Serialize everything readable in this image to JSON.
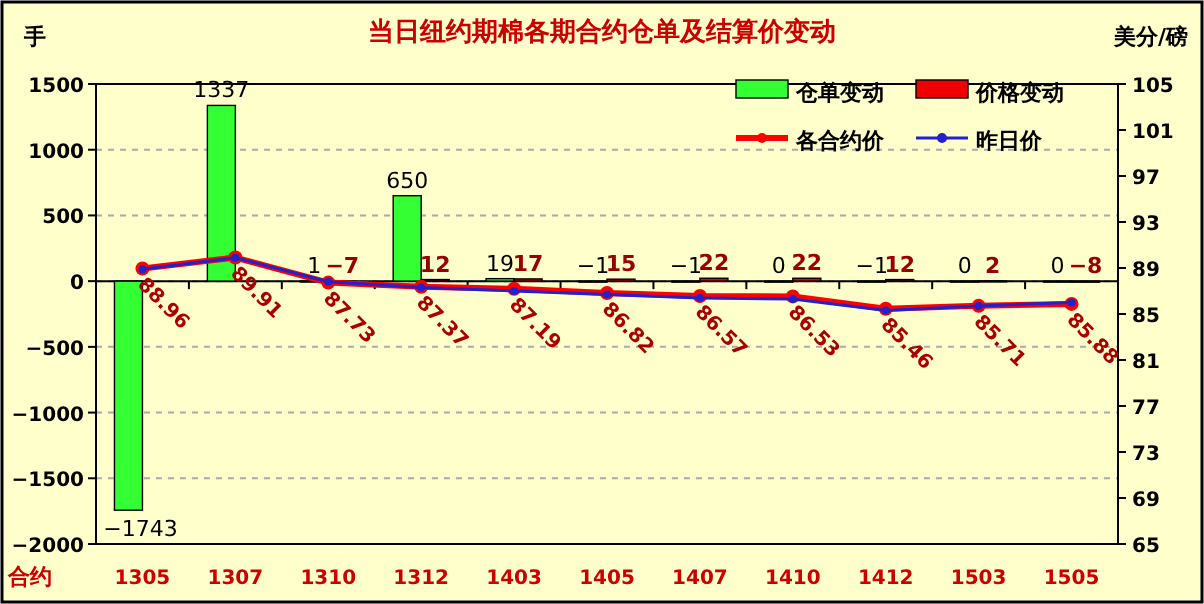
{
  "chart_data": {
    "type": "bar",
    "title": "当日纽约期棉各期合约仓单及结算价变动",
    "ylabel": "手",
    "y2label": "美分/磅",
    "xlabel": "合约",
    "categories": [
      "1305",
      "1307",
      "1310",
      "1312",
      "1403",
      "1405",
      "1407",
      "1410",
      "1412",
      "1503",
      "1505"
    ],
    "series": [
      {
        "name": "仓单变动",
        "color": "#33ff33",
        "values": [
          -1743,
          1337,
          1,
          650,
          19,
          -1,
          -1,
          0,
          -1,
          0,
          0
        ],
        "value_labels": [
          "−1743",
          "1337",
          "1",
          "650",
          "19",
          "−1",
          "−1",
          "0",
          "−1",
          "0",
          "0"
        ]
      },
      {
        "name": "价格变动",
        "color": "#ee0000",
        "values": [
          null,
          null,
          -7,
          12,
          17,
          15,
          22,
          22,
          12,
          2,
          -8
        ],
        "value_labels": [
          null,
          null,
          "−7",
          "12",
          "17",
          "15",
          "22",
          "22",
          "12",
          "2",
          "−8"
        ]
      },
      {
        "name": "各合约价",
        "type": "line",
        "axis": "y2",
        "color": "#ff0000",
        "marker": "circle",
        "values": [
          88.96,
          89.91,
          87.73,
          87.37,
          87.19,
          86.82,
          86.57,
          86.53,
          85.46,
          85.71,
          85.88
        ],
        "value_labels": [
          "88.96",
          "89.91",
          "87.73",
          "87.37",
          "87.19",
          "86.82",
          "86.57",
          "86.53",
          "85.46",
          "85.71",
          "85.88"
        ]
      },
      {
        "name": "昨日价",
        "type": "line",
        "axis": "y2",
        "color": "#2222cc",
        "marker": "circle",
        "values": [
          88.9,
          89.9,
          87.8,
          87.3,
          87.0,
          86.7,
          86.4,
          86.3,
          85.3,
          85.7,
          86.0
        ]
      }
    ],
    "ylim": [
      -2000,
      1500
    ],
    "yticks": [
      -2000,
      -1500,
      -1000,
      -500,
      0,
      500,
      1000,
      1500
    ],
    "y2lim": [
      65,
      105
    ],
    "y2ticks": [
      65,
      69,
      73,
      77,
      81,
      85,
      89,
      93,
      97,
      101,
      105
    ],
    "grid": "y",
    "legend": "top right"
  }
}
